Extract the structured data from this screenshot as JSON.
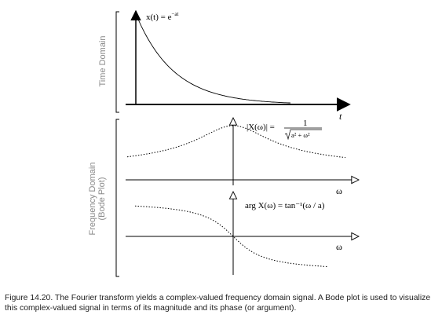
{
  "time_panel": {
    "ylabel": "Time Domain",
    "equation": "x(t) = e",
    "equation_exp": "−at",
    "xaxis_label": "t"
  },
  "freq_panel": {
    "ylabel_line1": "Frequency Domain",
    "ylabel_line2": "(Bode Plot)",
    "magnitude_lhs": "|X(ω)| =",
    "magnitude_num": "1",
    "magnitude_den": "a² + ω²",
    "magnitude_axis_label": "ω",
    "phase_equation": "arg X(ω) = tan⁻¹(ω / a)",
    "phase_axis_label": "ω"
  },
  "caption": "Figure 14.20.  The Fourier transform yields a complex-valued frequency domain signal.  A Bode plot is used to visualize this complex-valued signal in terms of its magnitude and its phase (or argument)."
}
